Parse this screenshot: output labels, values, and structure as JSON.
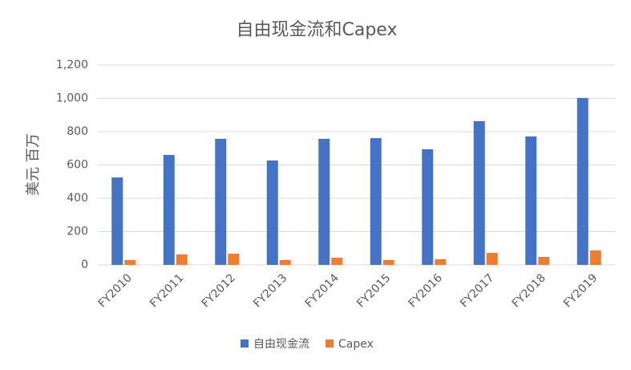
{
  "chart_data": {
    "type": "bar",
    "title": "自由现金流和Capex",
    "ylabel": "美元 百万",
    "categories": [
      "FY2010",
      "FY2011",
      "FY2012",
      "FY2013",
      "FY2014",
      "FY2015",
      "FY2016",
      "FY2017",
      "FY2018",
      "FY2019"
    ],
    "series": [
      {
        "name": "自由现金流",
        "color": "#4472c4",
        "values": [
          525,
          660,
          757,
          627,
          757,
          761,
          694,
          863,
          771,
          1002
        ]
      },
      {
        "name": "Capex",
        "color": "#ed7d31",
        "values": [
          29,
          63,
          67,
          29,
          43,
          29,
          34,
          72,
          48,
          87
        ]
      }
    ],
    "ylim": [
      0,
      1200
    ],
    "yticks": [
      0,
      200,
      400,
      600,
      800,
      {
        "value": 1000,
        "label": "1,000"
      },
      {
        "value": 1200,
        "label": "1,200"
      }
    ],
    "grid": true,
    "legend": "bottom"
  }
}
